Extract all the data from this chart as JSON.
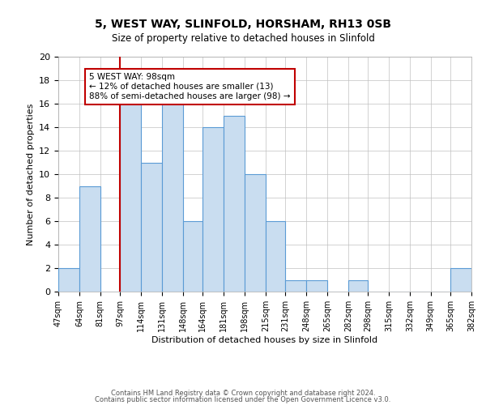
{
  "title": "5, WEST WAY, SLINFOLD, HORSHAM, RH13 0SB",
  "subtitle": "Size of property relative to detached houses in Slinfold",
  "xlabel": "Distribution of detached houses by size in Slinfold",
  "ylabel": "Number of detached properties",
  "bar_edges": [
    47,
    64,
    81,
    97,
    114,
    131,
    148,
    164,
    181,
    198,
    215,
    231,
    248,
    265,
    282,
    298,
    315,
    332,
    349,
    365,
    382
  ],
  "bar_heights": [
    2,
    9,
    0,
    17,
    11,
    16,
    6,
    14,
    15,
    10,
    6,
    1,
    1,
    0,
    1,
    0,
    0,
    0,
    0,
    2
  ],
  "bar_color": "#c9ddf0",
  "bar_edge_color": "#5b9bd5",
  "property_line_x": 97,
  "annotation_title": "5 WEST WAY: 98sqm",
  "annotation_line1": "← 12% of detached houses are smaller (13)",
  "annotation_line2": "88% of semi-detached houses are larger (98) →",
  "annotation_box_color": "#ffffff",
  "annotation_box_edge_color": "#c00000",
  "property_line_color": "#c00000",
  "tick_labels": [
    "47sqm",
    "64sqm",
    "81sqm",
    "97sqm",
    "114sqm",
    "131sqm",
    "148sqm",
    "164sqm",
    "181sqm",
    "198sqm",
    "215sqm",
    "231sqm",
    "248sqm",
    "265sqm",
    "282sqm",
    "298sqm",
    "315sqm",
    "332sqm",
    "349sqm",
    "365sqm",
    "382sqm"
  ],
  "ylim": [
    0,
    20
  ],
  "footer1": "Contains HM Land Registry data © Crown copyright and database right 2024.",
  "footer2": "Contains public sector information licensed under the Open Government Licence v3.0.",
  "background_color": "#ffffff",
  "grid_color": "#c0c0c0"
}
